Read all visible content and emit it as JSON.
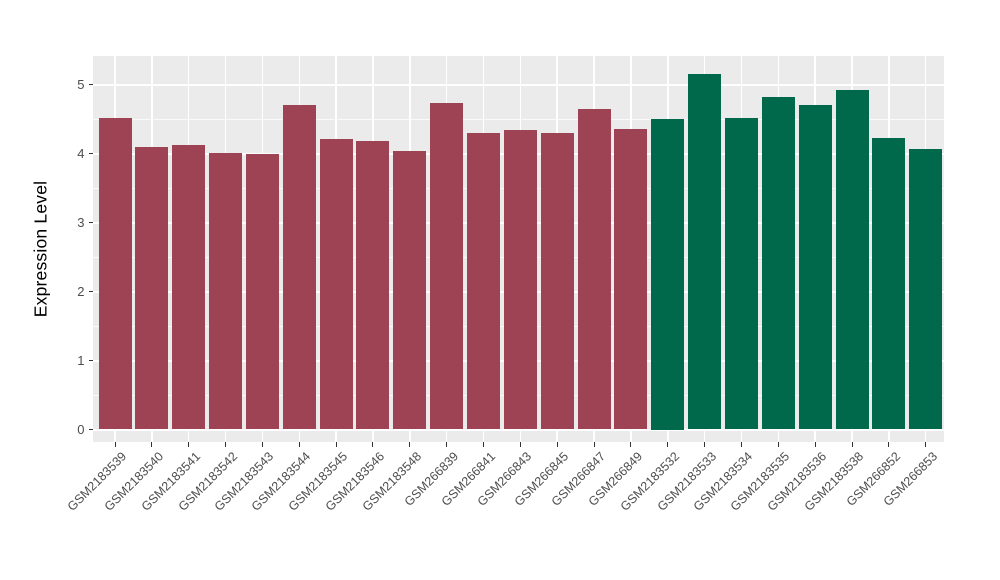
{
  "chart_data": {
    "type": "bar",
    "title": "",
    "xlabel": "",
    "ylabel": "Expression Level",
    "ylim": [
      0,
      5.4
    ],
    "yticks": [
      0,
      1,
      2,
      3,
      4,
      5
    ],
    "grid": true,
    "legend_position": "none",
    "categories": [
      "GSM2183539",
      "GSM2183540",
      "GSM2183541",
      "GSM2183542",
      "GSM2183543",
      "GSM2183544",
      "GSM2183545",
      "GSM2183546",
      "GSM2183548",
      "GSM266839",
      "GSM266841",
      "GSM266843",
      "GSM266845",
      "GSM266847",
      "GSM266849",
      "GSM2183532",
      "GSM2183533",
      "GSM2183534",
      "GSM2183535",
      "GSM2183536",
      "GSM2183538",
      "GSM266852",
      "GSM266853"
    ],
    "values": [
      4.52,
      4.1,
      4.13,
      4.01,
      3.99,
      4.7,
      4.21,
      4.18,
      4.04,
      4.73,
      4.29,
      4.34,
      4.3,
      4.65,
      4.35,
      4.5,
      5.15,
      4.51,
      4.82,
      4.71,
      4.92,
      4.22,
      4.07
    ],
    "bar_groups": [
      "maroon",
      "maroon",
      "maroon",
      "maroon",
      "maroon",
      "maroon",
      "maroon",
      "maroon",
      "maroon",
      "maroon",
      "maroon",
      "maroon",
      "maroon",
      "maroon",
      "maroon",
      "green",
      "green",
      "green",
      "green",
      "green",
      "green",
      "green",
      "green"
    ],
    "colors": {
      "maroon": "#9E4353",
      "green": "#00684B",
      "panel_bg": "#EBEBEB",
      "grid": "#FFFFFF",
      "tick": "#333333",
      "axis_text": "#4D4D4D",
      "axis_title": "#000000"
    }
  }
}
